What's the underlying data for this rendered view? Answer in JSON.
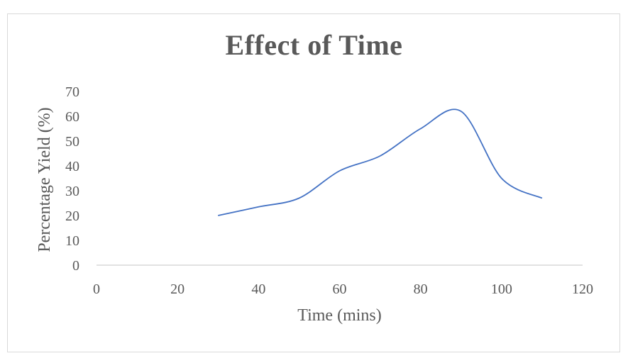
{
  "chart_data": {
    "type": "line",
    "title": "Effect of Time",
    "xlabel": "Time (mins)",
    "ylabel": "Percentage Yield (%)",
    "xlim": [
      0,
      120
    ],
    "ylim": [
      0,
      70
    ],
    "x_ticks": [
      0,
      20,
      40,
      60,
      80,
      100,
      120
    ],
    "y_ticks": [
      0,
      10,
      20,
      30,
      40,
      50,
      60,
      70
    ],
    "grid": false,
    "smooth": true,
    "series": [
      {
        "color": "#4472c4",
        "x": [
          30,
          40,
          50,
          60,
          70,
          80,
          90,
          100,
          110
        ],
        "y": [
          20,
          23.5,
          27,
          38,
          44,
          55,
          62,
          35,
          27
        ]
      }
    ]
  }
}
